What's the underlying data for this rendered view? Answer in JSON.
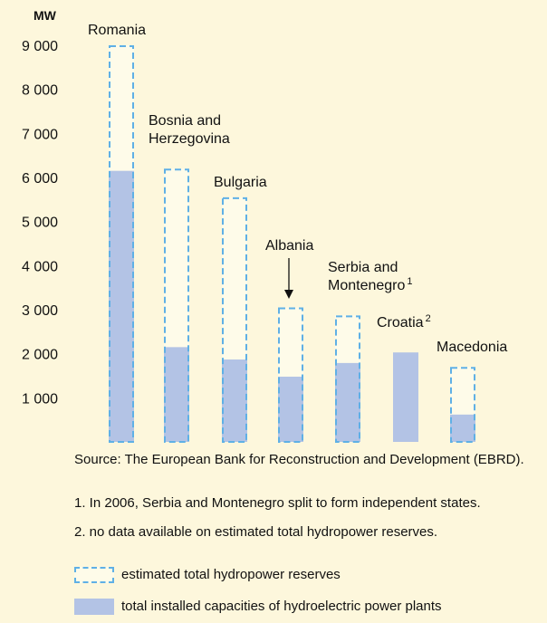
{
  "chart_data": {
    "type": "bar",
    "ylabel": "MW",
    "ylim": [
      0,
      9500
    ],
    "yticks": [
      1000,
      2000,
      3000,
      4000,
      5000,
      6000,
      7000,
      8000,
      9000
    ],
    "ytick_labels": [
      "1 000",
      "2 000",
      "3 000",
      "4 000",
      "5 000",
      "6 000",
      "7 000",
      "8 000",
      "9 000"
    ],
    "categories": [
      "Romania",
      "Bosnia and Herzegovina",
      "Bulgaria",
      "Albania",
      "Serbia and Montenegro",
      "Croatia",
      "Macedonia"
    ],
    "category_labels": [
      {
        "lines": [
          "Romania"
        ],
        "sup": ""
      },
      {
        "lines": [
          "Bosnia and",
          "Herzegovina"
        ],
        "sup": ""
      },
      {
        "lines": [
          "Bulgaria"
        ],
        "sup": ""
      },
      {
        "lines": [
          "Albania"
        ],
        "sup": ""
      },
      {
        "lines": [
          "Serbia and",
          "Montenegro"
        ],
        "sup": "1"
      },
      {
        "lines": [
          "Croatia"
        ],
        "sup": "2"
      },
      {
        "lines": [
          "Macedonia"
        ],
        "sup": ""
      }
    ],
    "series": [
      {
        "name": "estimated total hydropower reserves",
        "style": "dashed",
        "color": "#5fb0e6",
        "values": [
          9000,
          6200,
          5550,
          3050,
          2870,
          null,
          1700
        ]
      },
      {
        "name": "total installed capacities of hydroelectric power plants",
        "style": "solid",
        "color": "#b3c3e5",
        "values": [
          6150,
          2150,
          1870,
          1480,
          1790,
          2030,
          620
        ]
      }
    ],
    "annotations": [
      {
        "type": "arrow",
        "category": "Albania"
      }
    ]
  },
  "source_text": "Source: The European Bank for Reconstruction and Development (EBRD).",
  "notes": [
    "1. In 2006, Serbia and Montenegro split to form independent states.",
    "2. no data available on estimated total hydropower reserves."
  ],
  "legend": [
    {
      "label": "estimated total hydropower reserves",
      "style": "dashed"
    },
    {
      "label": "total installed capacities of hydroelectric power plants",
      "style": "solid"
    }
  ],
  "colors": {
    "background": "#fdf7dc",
    "reserve_fill": "#fefbe9",
    "reserve_border": "#5fb0e6",
    "installed_fill": "#b3c3e5",
    "text": "#111111"
  }
}
